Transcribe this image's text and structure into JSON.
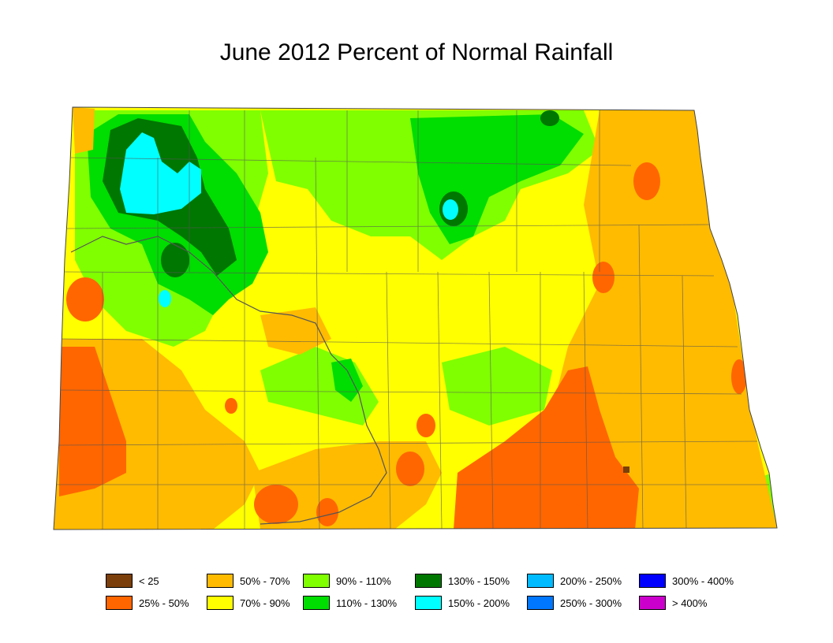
{
  "title": "June 2012 Percent of Normal Rainfall",
  "legend": [
    {
      "label": "< 25",
      "color": "#7a3f0a"
    },
    {
      "label": "25% - 50%",
      "color": "#ff6600"
    },
    {
      "label": "50% - 70%",
      "color": "#ffbb00"
    },
    {
      "label": "70% - 90%",
      "color": "#ffff00"
    },
    {
      "label": "90% - 110%",
      "color": "#80ff00"
    },
    {
      "label": "110% - 130%",
      "color": "#00dd00"
    },
    {
      "label": "130% - 150%",
      "color": "#007700"
    },
    {
      "label": "150% - 200%",
      "color": "#00ffff"
    },
    {
      "label": "200% - 250%",
      "color": "#00bbff"
    },
    {
      "label": "250% - 300%",
      "color": "#0077ff"
    },
    {
      "label": "300% - 400%",
      "color": "#0000ff"
    },
    {
      "label": "> 400%",
      "color": "#cc00cc"
    }
  ]
}
